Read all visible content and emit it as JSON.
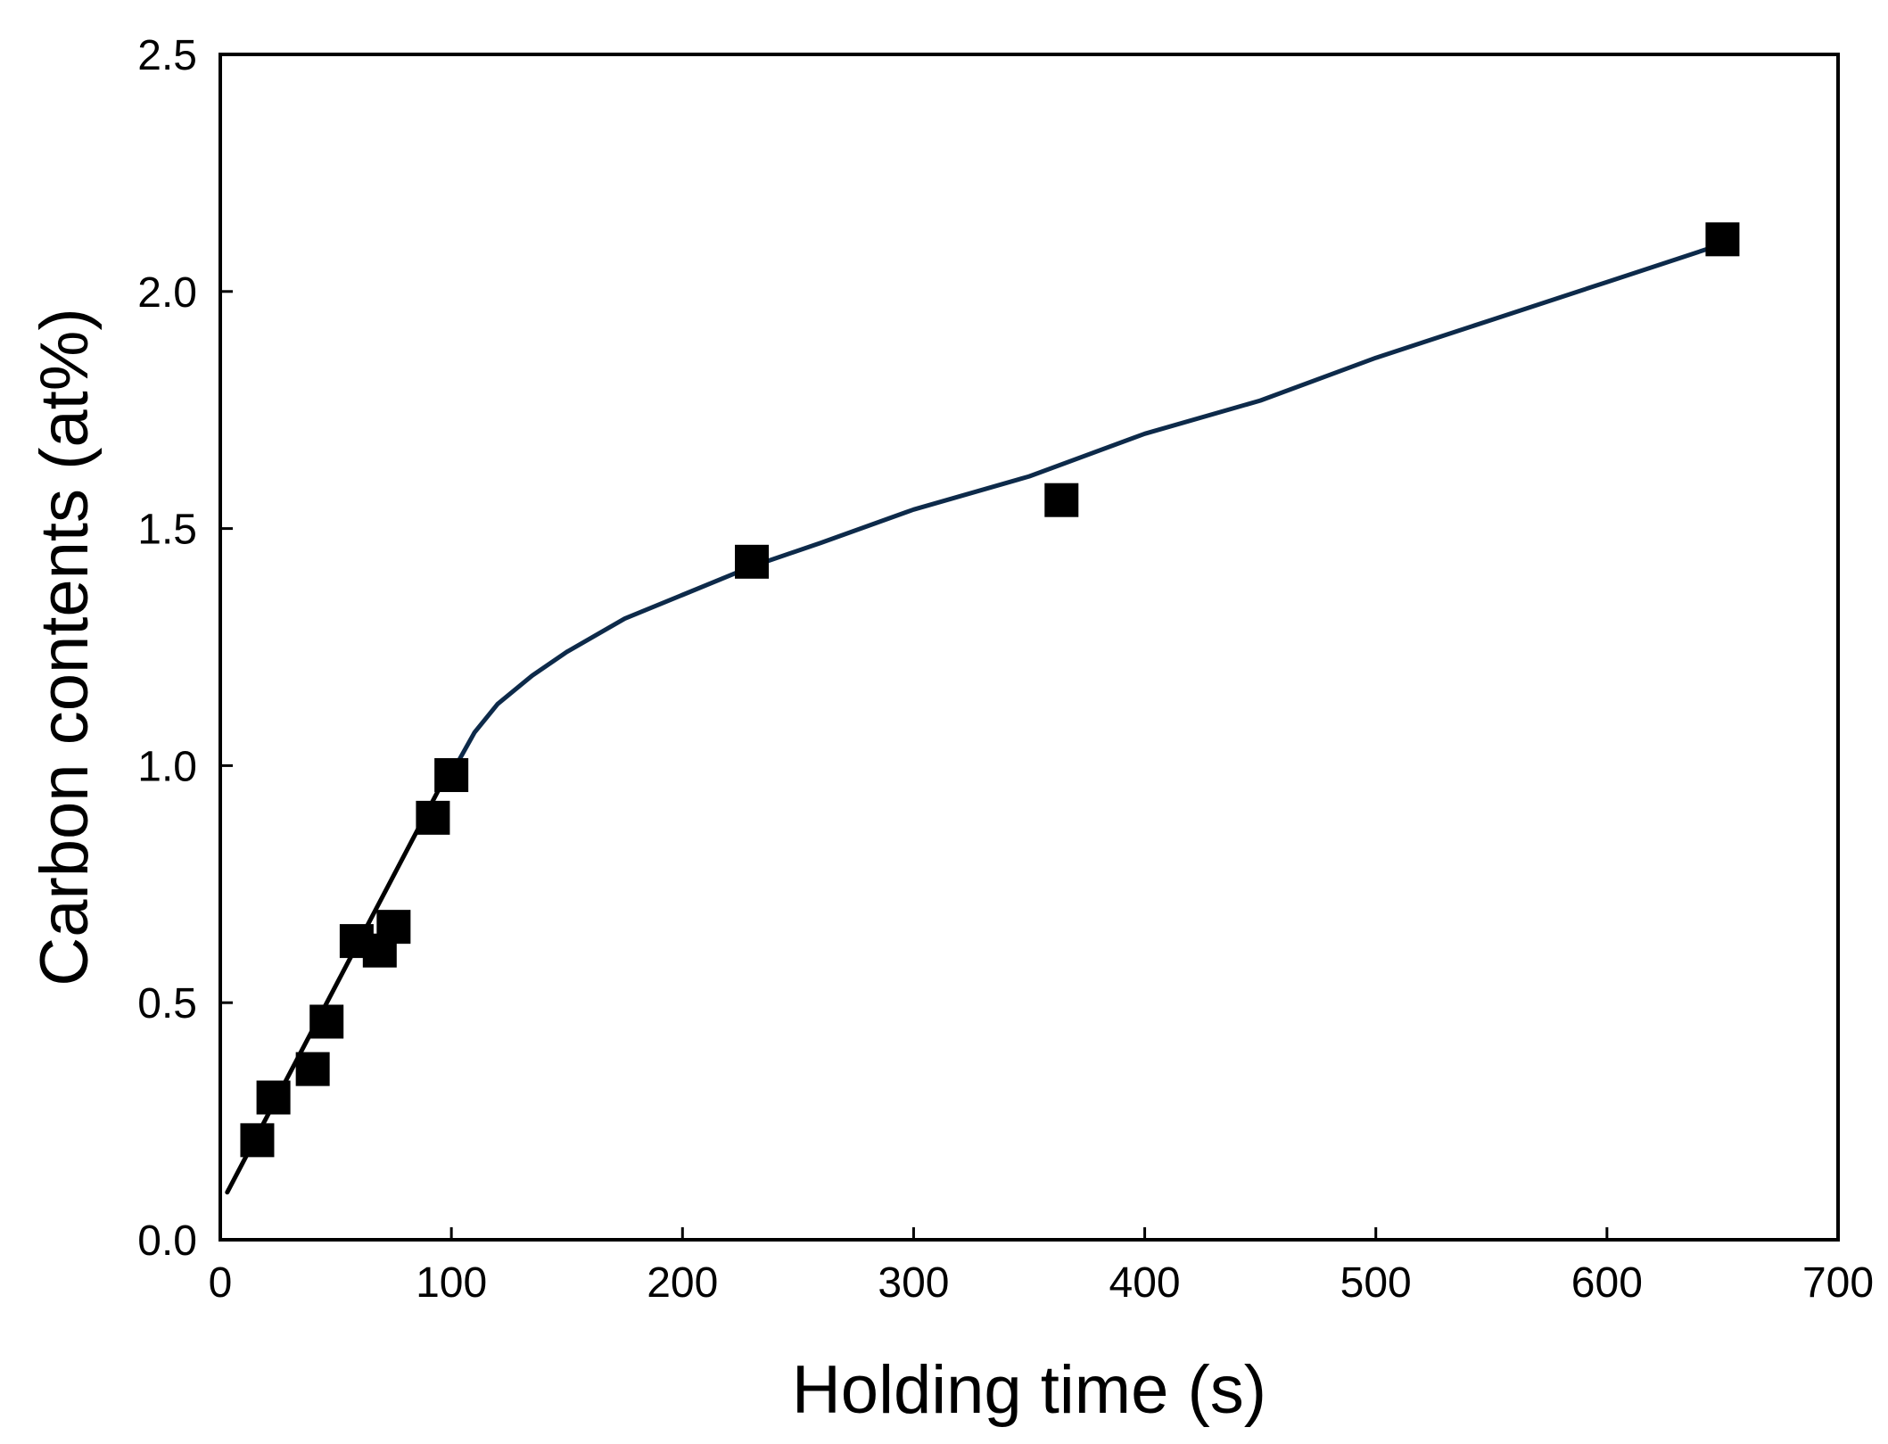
{
  "chart_data": {
    "type": "scatter",
    "title": "",
    "xlabel": "Holding time (s)",
    "ylabel": "Carbon contents (at%)",
    "xlim": [
      0,
      700
    ],
    "ylim": [
      0,
      2.5
    ],
    "xticks": [
      0,
      100,
      200,
      300,
      400,
      500,
      600,
      700
    ],
    "xtick_labels": [
      "0",
      "100",
      "200",
      "300",
      "400",
      "500",
      "600",
      "700"
    ],
    "yticks": [
      0,
      0.5,
      1.0,
      1.5,
      2.0,
      2.5
    ],
    "ytick_labels": [
      "0.0",
      "0.5",
      "1.0",
      "1.5",
      "2.0",
      "2.5"
    ],
    "grid": false,
    "legend": "none",
    "series": [
      {
        "kind": "markers",
        "marker": "square",
        "color": "#000000",
        "x": [
          16,
          23,
          40,
          46,
          59,
          69,
          75,
          92,
          100,
          230,
          364,
          650
        ],
        "y": [
          0.21,
          0.3,
          0.36,
          0.46,
          0.63,
          0.61,
          0.66,
          0.89,
          0.98,
          1.43,
          1.56,
          2.11
        ]
      },
      {
        "kind": "line",
        "color": "#000000",
        "x": [
          3,
          100
        ],
        "y": [
          0.1,
          1.0
        ]
      },
      {
        "kind": "line",
        "color": "#0d2a4a",
        "x": [
          102,
          110,
          120,
          135,
          150,
          175,
          200,
          230,
          260,
          300,
          350,
          400,
          450,
          500,
          550,
          600,
          650
        ],
        "y": [
          1.0,
          1.07,
          1.13,
          1.19,
          1.24,
          1.31,
          1.36,
          1.42,
          1.47,
          1.54,
          1.61,
          1.7,
          1.77,
          1.86,
          1.94,
          2.02,
          2.1
        ]
      }
    ]
  }
}
